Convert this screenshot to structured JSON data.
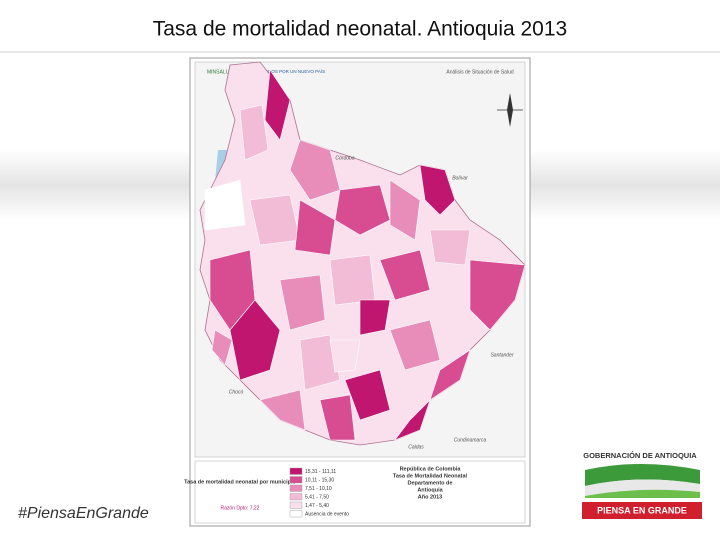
{
  "header": {
    "title": "Tasa de mortalidad neonatal. Antioquia 2013"
  },
  "map": {
    "banner": {
      "ministry": "MINSALUD",
      "slogan": "TODOS POR UN NUEVO PAÍS",
      "report": "Análisis de Situación de Salud"
    },
    "neighbors": [
      "Córdoba",
      "Bolívar",
      "Chocó",
      "Santander",
      "Caldas",
      "Cundinamarca"
    ],
    "legend": {
      "title": "Tasa de mortalidad neonatal por municipio",
      "classes": [
        {
          "label": "15,31 - 111,11",
          "color": "#c0166f"
        },
        {
          "label": "10,11 - 15,30",
          "color": "#d84c92"
        },
        {
          "label": "7,51 - 10,10",
          "color": "#e88cb9"
        },
        {
          "label": "5,41 - 7,50",
          "color": "#f2bcd6"
        },
        {
          "label": "1,47 - 5,40",
          "color": "#f9e0ec"
        },
        {
          "label": "Ausencia de evento",
          "color": "#ffffff"
        }
      ],
      "department_rate": "Razón Dpto: 7,22"
    },
    "info": [
      "República de Colombia",
      "Tasa de Mortalidad Neonatal",
      "Departamento de",
      "Antioquia",
      "Año 2013"
    ]
  },
  "footer": {
    "hashtag": "#PiensaEnGrande",
    "logo_title": "GOBERNACIÓN DE ANTIOQUIA",
    "logo_slogan": "PIENSA EN GRANDE"
  }
}
